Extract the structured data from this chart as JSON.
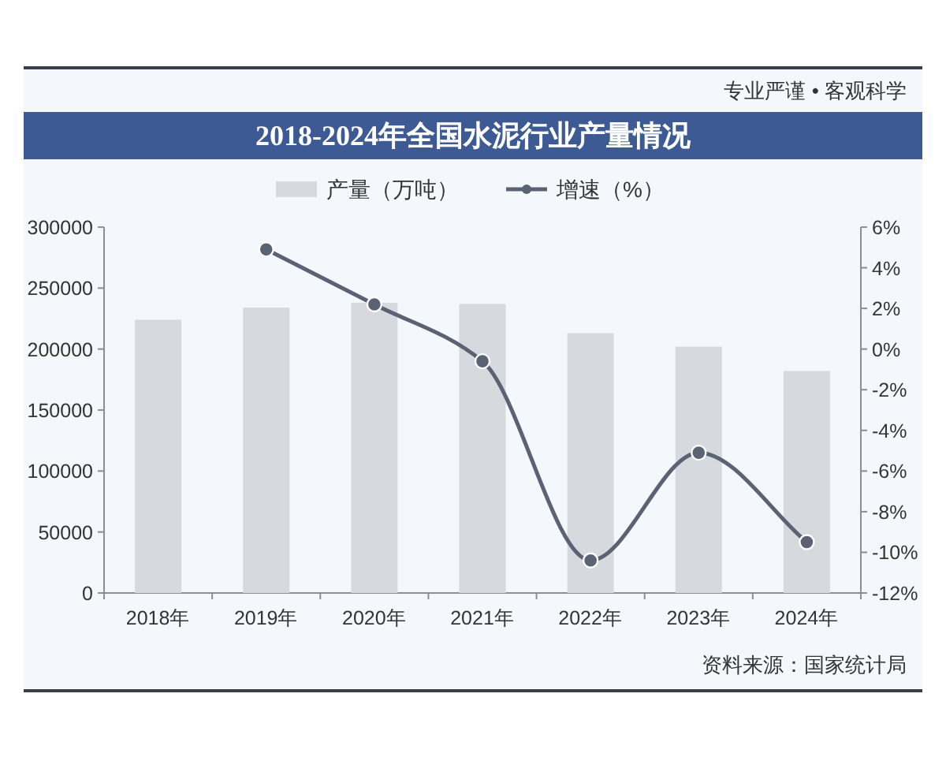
{
  "chart_data": {
    "type": "bar",
    "title": "2018-2024年全国水泥行业产量情况",
    "annotations": [
      "专业严谨 • 客观科学",
      "资料来源：国家统计局"
    ],
    "categories": [
      "2018年",
      "2019年",
      "2020年",
      "2021年",
      "2022年",
      "2023年",
      "2024年"
    ],
    "series": [
      {
        "name": "产量（万吨）",
        "color": "#d6d9de",
        "values": [
          224000,
          234000,
          238000,
          237000,
          213000,
          202000,
          182000
        ]
      },
      {
        "name": "增速（%）",
        "type": "line",
        "axis": "y2",
        "color": "#5b6274",
        "marker": "circle",
        "values": [
          null,
          4.9,
          2.2,
          -0.6,
          -10.4,
          -5.1,
          -9.5
        ]
      }
    ],
    "ylim": [
      0,
      300000
    ],
    "yticks": [
      0,
      50000,
      100000,
      150000,
      200000,
      250000,
      300000
    ],
    "y2lim": [
      -12,
      6
    ],
    "y2ticks": [
      {
        "value": -12,
        "label": "-12%"
      },
      {
        "value": -10,
        "label": "-10%"
      },
      {
        "value": -8,
        "label": "-8%"
      },
      {
        "value": -6,
        "label": "-6%"
      },
      {
        "value": -4,
        "label": "-4%"
      },
      {
        "value": -2,
        "label": "-2%"
      },
      {
        "value": 0,
        "label": "0%"
      },
      {
        "value": 2,
        "label": "2%"
      },
      {
        "value": 4,
        "label": "4%"
      },
      {
        "value": 6,
        "label": "6%"
      }
    ],
    "legend": "top"
  }
}
